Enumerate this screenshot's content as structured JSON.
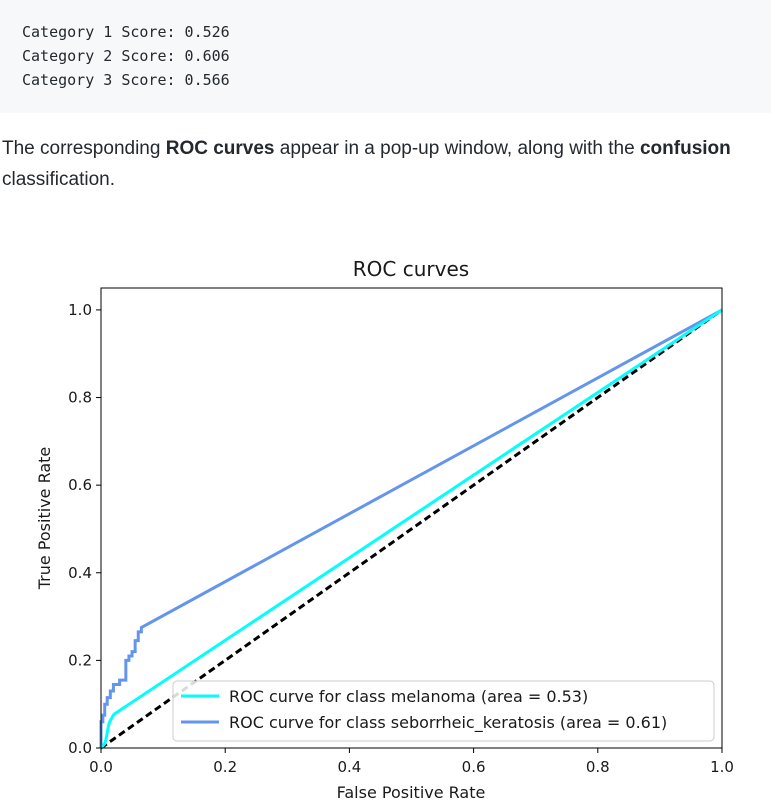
{
  "code_output": {
    "lines": [
      "Category 1 Score: 0.526",
      "Category 2 Score: 0.606",
      "Category 3 Score: 0.566"
    ]
  },
  "paragraph": {
    "line1_pre": "The corresponding ",
    "line1_bold1": "ROC curves",
    "line1_mid": " appear in a pop-up window, along with the ",
    "line1_bold2": "confusion",
    "line2": "classification."
  },
  "chart_data": {
    "type": "line",
    "title": "ROC curves",
    "xlabel": "False Positive Rate",
    "ylabel": "True Positive Rate",
    "xlim": [
      0.0,
      1.0
    ],
    "ylim": [
      0.0,
      1.05
    ],
    "xticks": [
      "0.0",
      "0.2",
      "0.4",
      "0.6",
      "0.8",
      "1.0"
    ],
    "yticks": [
      "0.0",
      "0.2",
      "0.4",
      "0.6",
      "0.8",
      "1.0"
    ],
    "legend_position": "lower right",
    "grid": false,
    "series": [
      {
        "name": "ROC curve for class melanoma (area = 0.53)",
        "color": "#00ffff",
        "x": [
          0,
          0.003,
          0.006,
          0.008,
          0.01,
          0.012,
          0.014,
          0.016,
          0.018,
          0.02,
          0.022,
          1.0
        ],
        "y": [
          0,
          0.005,
          0.01,
          0.02,
          0.035,
          0.05,
          0.06,
          0.065,
          0.07,
          0.075,
          0.078,
          1.0
        ]
      },
      {
        "name": "ROC curve for class seborrheic_keratosis (area = 0.61)",
        "color": "#6495ed",
        "x": [
          0,
          0.0,
          0.003,
          0.003,
          0.006,
          0.006,
          0.01,
          0.01,
          0.015,
          0.015,
          0.02,
          0.02,
          0.03,
          0.03,
          0.04,
          0.04,
          0.045,
          0.045,
          0.05,
          0.05,
          0.055,
          0.055,
          0.06,
          0.06,
          0.065,
          0.065,
          1.0
        ],
        "y": [
          0,
          0.06,
          0.06,
          0.075,
          0.075,
          0.1,
          0.1,
          0.115,
          0.115,
          0.13,
          0.13,
          0.145,
          0.145,
          0.155,
          0.155,
          0.2,
          0.2,
          0.21,
          0.21,
          0.22,
          0.22,
          0.245,
          0.245,
          0.265,
          0.265,
          0.275,
          1.0
        ]
      },
      {
        "name": "",
        "color": "#000000",
        "dashed": true,
        "x": [
          0,
          1
        ],
        "y": [
          0,
          1
        ]
      }
    ]
  }
}
